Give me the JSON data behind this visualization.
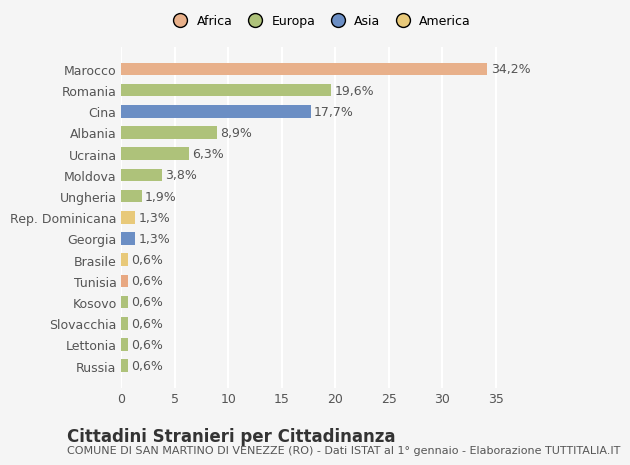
{
  "countries": [
    "Russia",
    "Lettonia",
    "Slovacchia",
    "Kosovo",
    "Tunisia",
    "Brasile",
    "Georgia",
    "Rep. Dominicana",
    "Ungheria",
    "Moldova",
    "Ucraina",
    "Albania",
    "Cina",
    "Romania",
    "Marocco"
  ],
  "values": [
    0.6,
    0.6,
    0.6,
    0.6,
    0.6,
    0.6,
    1.3,
    1.3,
    1.9,
    3.8,
    6.3,
    8.9,
    17.7,
    19.6,
    34.2
  ],
  "labels": [
    "0,6%",
    "0,6%",
    "0,6%",
    "0,6%",
    "0,6%",
    "0,6%",
    "1,3%",
    "1,3%",
    "1,9%",
    "3,8%",
    "6,3%",
    "8,9%",
    "17,7%",
    "19,6%",
    "34,2%"
  ],
  "colors": [
    "#aec27a",
    "#aec27a",
    "#aec27a",
    "#aec27a",
    "#e8a882",
    "#e8c97a",
    "#6b8ec4",
    "#e8c97a",
    "#aec27a",
    "#aec27a",
    "#aec27a",
    "#aec27a",
    "#6b8ec4",
    "#aec27a",
    "#e8b08a"
  ],
  "legend_labels": [
    "Africa",
    "Europa",
    "Asia",
    "America"
  ],
  "legend_colors": [
    "#e8b08a",
    "#aec27a",
    "#6b8ec4",
    "#e8c97a"
  ],
  "title": "Cittadini Stranieri per Cittadinanza",
  "subtitle": "COMUNE DI SAN MARTINO DI VENEZZE (RO) - Dati ISTAT al 1° gennaio - Elaborazione TUTTITALIA.IT",
  "xlim": [
    0,
    37
  ],
  "background_color": "#f5f5f5",
  "bar_height": 0.6,
  "grid_color": "#ffffff",
  "label_fontsize": 9,
  "tick_fontsize": 9,
  "title_fontsize": 12,
  "subtitle_fontsize": 8
}
